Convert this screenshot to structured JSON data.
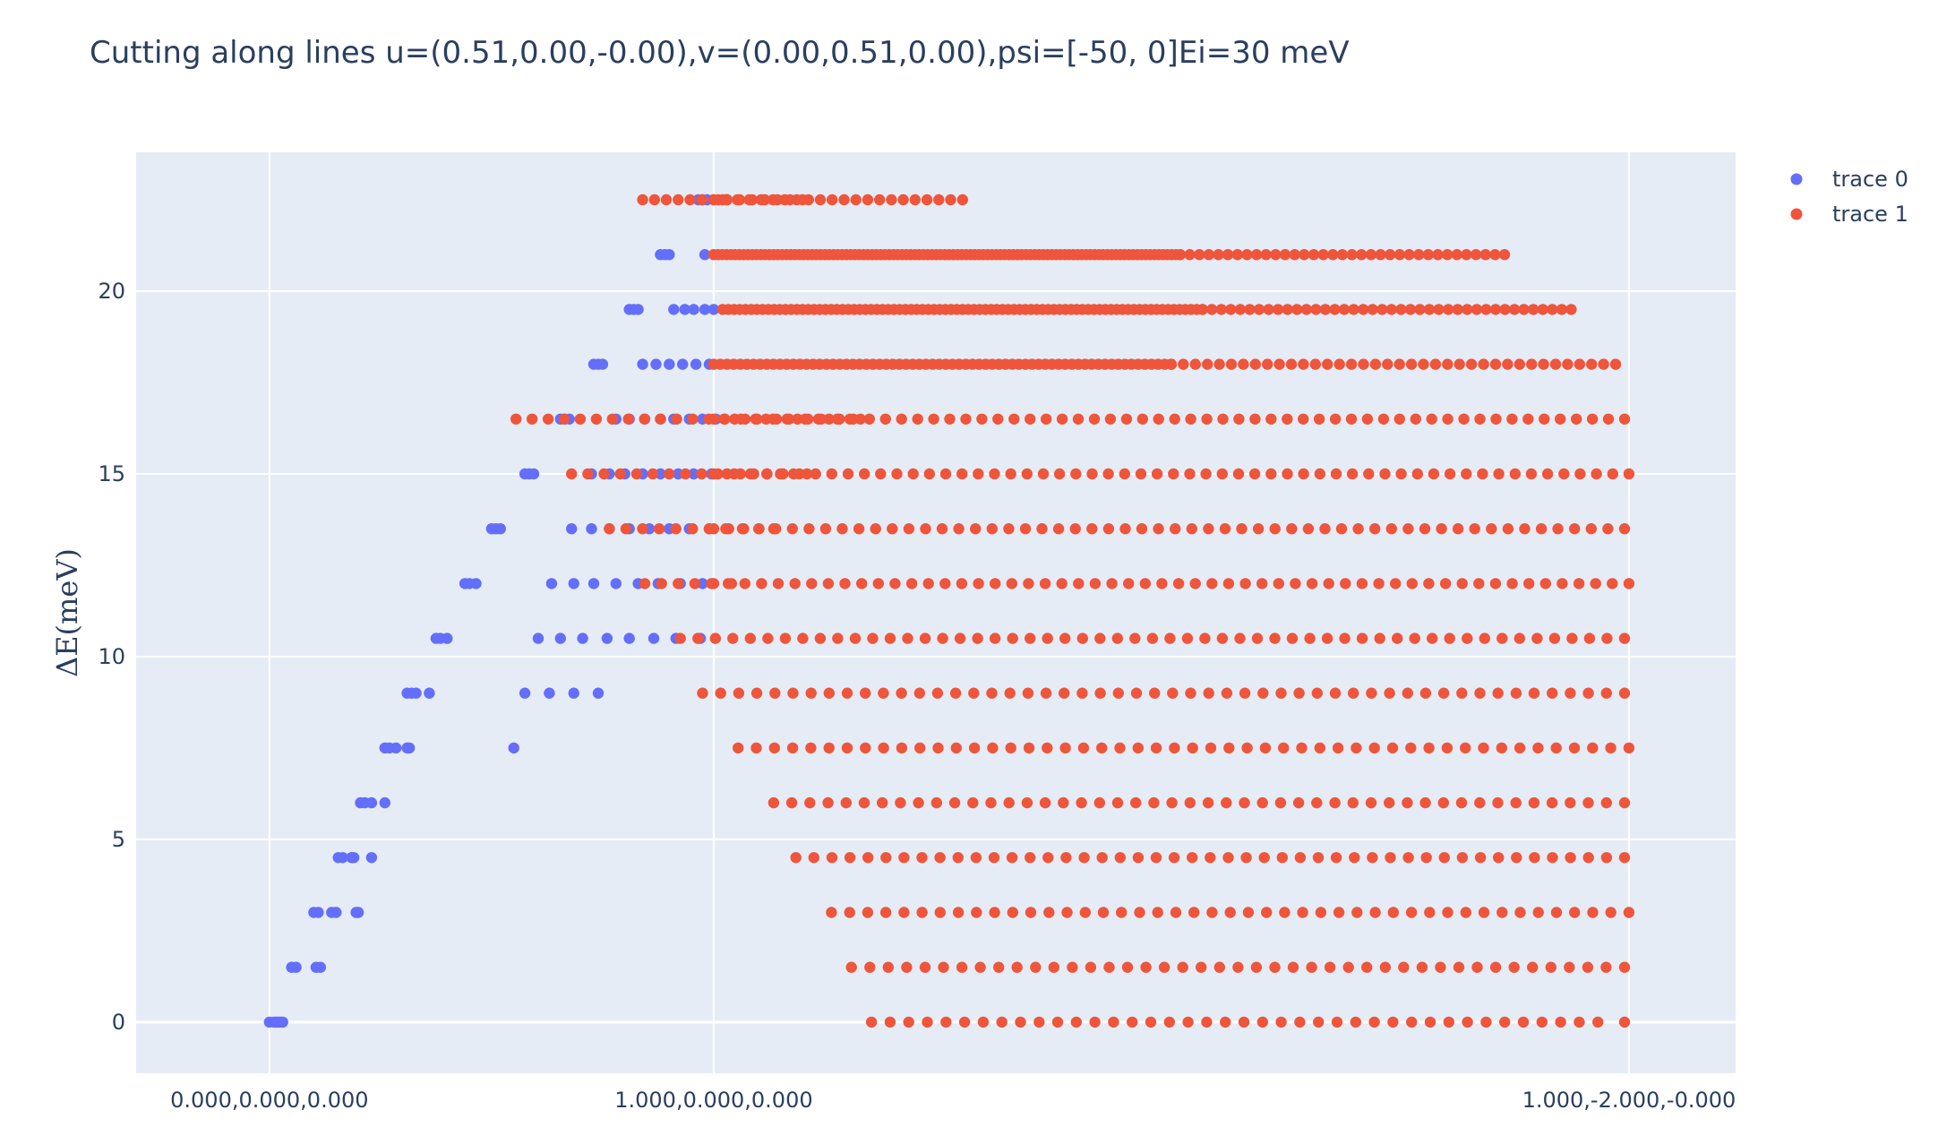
{
  "chart_data": {
    "type": "scatter",
    "title": "Cutting along lines  u=(0.51,0.00,-0.00),v=(0.00,0.51,0.00),psi=[-50, 0]Ei=30 meV",
    "xlabel": "",
    "ylabel": "ΔE(meV)",
    "xlim": [
      -0.3,
      3.3
    ],
    "ylim": [
      -1.4,
      23.8
    ],
    "grid": true,
    "legend_position": "top-right",
    "plot_background": "#E5ECF6",
    "x_ticks": [
      {
        "value": 0,
        "label": "0.000,0.000,0.000"
      },
      {
        "value": 1,
        "label": "1.000,0.000,0.000"
      },
      {
        "value": 3.06,
        "label": "1.000,-2.000,-0.000"
      }
    ],
    "y_ticks": [
      0,
      5,
      10,
      15,
      20
    ],
    "series": [
      {
        "name": "trace 0",
        "color": "#636EFA",
        "rows": [
          {
            "y": 0,
            "x": [
              0.0,
              0.01,
              0.015,
              0.02,
              0.025,
              0.03
            ]
          },
          {
            "y": 1.5,
            "x": [
              0.05,
              0.06,
              0.105,
              0.115
            ]
          },
          {
            "y": 3,
            "x": [
              0.1,
              0.11,
              0.14,
              0.15,
              0.195,
              0.2
            ]
          },
          {
            "y": 4.5,
            "x": [
              0.155,
              0.165,
              0.185,
              0.19,
              0.23
            ]
          },
          {
            "y": 6,
            "x": [
              0.205,
              0.215,
              0.23,
              0.26
            ]
          },
          {
            "y": 7.5,
            "x": [
              0.26,
              0.27,
              0.285,
              0.31,
              0.315,
              0.55
            ]
          },
          {
            "y": 9,
            "x": [
              0.31,
              0.32,
              0.33,
              0.36,
              0.575,
              0.63,
              0.685,
              0.74
            ]
          },
          {
            "y": 10.5,
            "x": [
              0.375,
              0.385,
              0.4,
              0.605,
              0.655,
              0.705,
              0.76,
              0.81,
              0.865,
              0.915,
              0.97
            ]
          },
          {
            "y": 12,
            "x": [
              0.44,
              0.45,
              0.465,
              0.635,
              0.685,
              0.73,
              0.78,
              0.83,
              0.875,
              0.925,
              0.975
            ]
          },
          {
            "y": 13.5,
            "x": [
              0.5,
              0.51,
              0.52,
              0.68,
              0.725,
              0.765,
              0.81,
              0.855,
              0.9,
              0.945,
              0.99
            ]
          },
          {
            "y": 15,
            "x": [
              0.575,
              0.585,
              0.595,
              0.725,
              0.765,
              0.8,
              0.84,
              0.88,
              0.92,
              0.955,
              0.995
            ]
          },
          {
            "y": 16.5,
            "x": [
              0.655,
              0.665,
              0.675,
              0.78,
              0.81,
              0.845,
              0.88,
              0.91,
              0.945,
              0.975,
              1.005
            ]
          },
          {
            "y": 18,
            "x": [
              0.73,
              0.74,
              0.75,
              0.84,
              0.87,
              0.9,
              0.93,
              0.96,
              0.99
            ]
          },
          {
            "y": 19.5,
            "x": [
              0.81,
              0.82,
              0.83,
              0.91,
              0.935,
              0.955,
              0.98,
              1.0
            ]
          },
          {
            "y": 21,
            "x": [
              0.88,
              0.89,
              0.9,
              0.98
            ]
          },
          {
            "y": 22.5,
            "x": [
              0.965,
              0.975,
              0.985
            ]
          }
        ]
      },
      {
        "name": "trace 1",
        "color": "#EF553B",
        "rows": [
          {
            "y": 0,
            "ranges": [
              [
                1.355,
                2.99,
                40
              ]
            ],
            "x": [
              3.05
            ]
          },
          {
            "y": 1.5,
            "ranges": [
              [
                1.31,
                3.05,
                43
              ]
            ]
          },
          {
            "y": 3,
            "ranges": [
              [
                1.265,
                3.06,
                45
              ]
            ]
          },
          {
            "y": 4.5,
            "ranges": [
              [
                1.185,
                3.05,
                47
              ]
            ]
          },
          {
            "y": 6,
            "ranges": [
              [
                1.135,
                3.05,
                48
              ]
            ]
          },
          {
            "y": 7.5,
            "ranges": [
              [
                1.055,
                3.06,
                50
              ]
            ]
          },
          {
            "y": 9,
            "ranges": [
              [
                0.975,
                3.05,
                52
              ]
            ]
          },
          {
            "y": 10.5,
            "ranges": [
              [
                0.925,
                3.05,
                55
              ]
            ]
          },
          {
            "y": 12,
            "ranges": [
              [
                0.845,
                3.06,
                60
              ]
            ],
            "x": [
              1.0,
              1.04
            ]
          },
          {
            "y": 13.5,
            "ranges": [
              [
                1.0,
                1.135,
                5
              ],
              [
                0.765,
                3.05,
                62
              ]
            ]
          },
          {
            "y": 15,
            "ranges": [
              [
                1.0,
                1.21,
                8
              ],
              [
                0.68,
                3.06,
                66
              ]
            ]
          },
          {
            "y": 16.5,
            "ranges": [
              [
                1.0,
                1.33,
                15
              ],
              [
                0.555,
                3.05,
                70
              ]
            ]
          },
          {
            "y": 18,
            "ranges": [
              [
                1.0,
                2.03,
                70
              ],
              [
                2.03,
                3.03,
                38
              ]
            ]
          },
          {
            "y": 19.5,
            "ranges": [
              [
                1.02,
                2.1,
                85
              ],
              [
                2.1,
                2.93,
                40
              ]
            ]
          },
          {
            "y": 21,
            "ranges": [
              [
                1.0,
                2.05,
                110
              ],
              [
                2.05,
                2.78,
                35
              ]
            ]
          },
          {
            "y": 22.5,
            "ranges": [
              [
                1.0,
                1.03,
                4
              ],
              [
                1.03,
                1.2,
                7
              ],
              [
                0.84,
                1.56,
                28
              ]
            ]
          }
        ]
      }
    ]
  }
}
